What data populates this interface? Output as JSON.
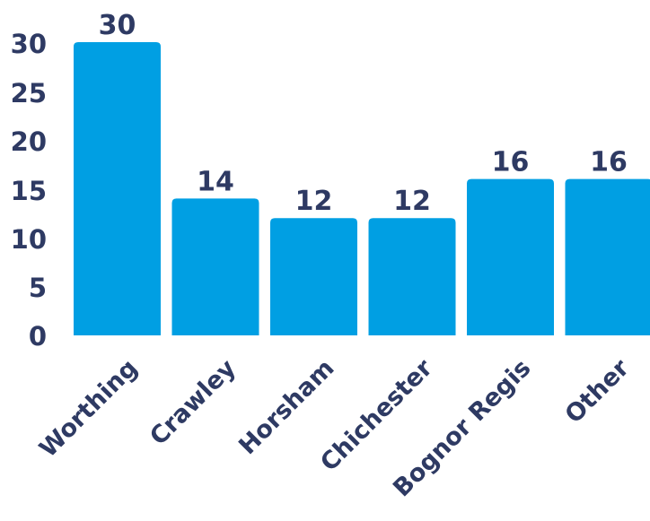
{
  "colors": {
    "bar": "#009fe3",
    "text": "#2e3a63"
  },
  "chart_data": {
    "type": "bar",
    "categories": [
      "Worthing",
      "Crawley",
      "Horsham",
      "Chichester",
      "Bognor Regis",
      "Other"
    ],
    "values": [
      30,
      14,
      12,
      12,
      16,
      16
    ],
    "ylim": [
      0,
      30
    ],
    "yticks": [
      "0",
      "5",
      "10",
      "15",
      "20",
      "25",
      "30"
    ],
    "data_labels": [
      "30",
      "14",
      "12",
      "12",
      "16",
      "16"
    ],
    "grid": false,
    "legend": "none"
  }
}
